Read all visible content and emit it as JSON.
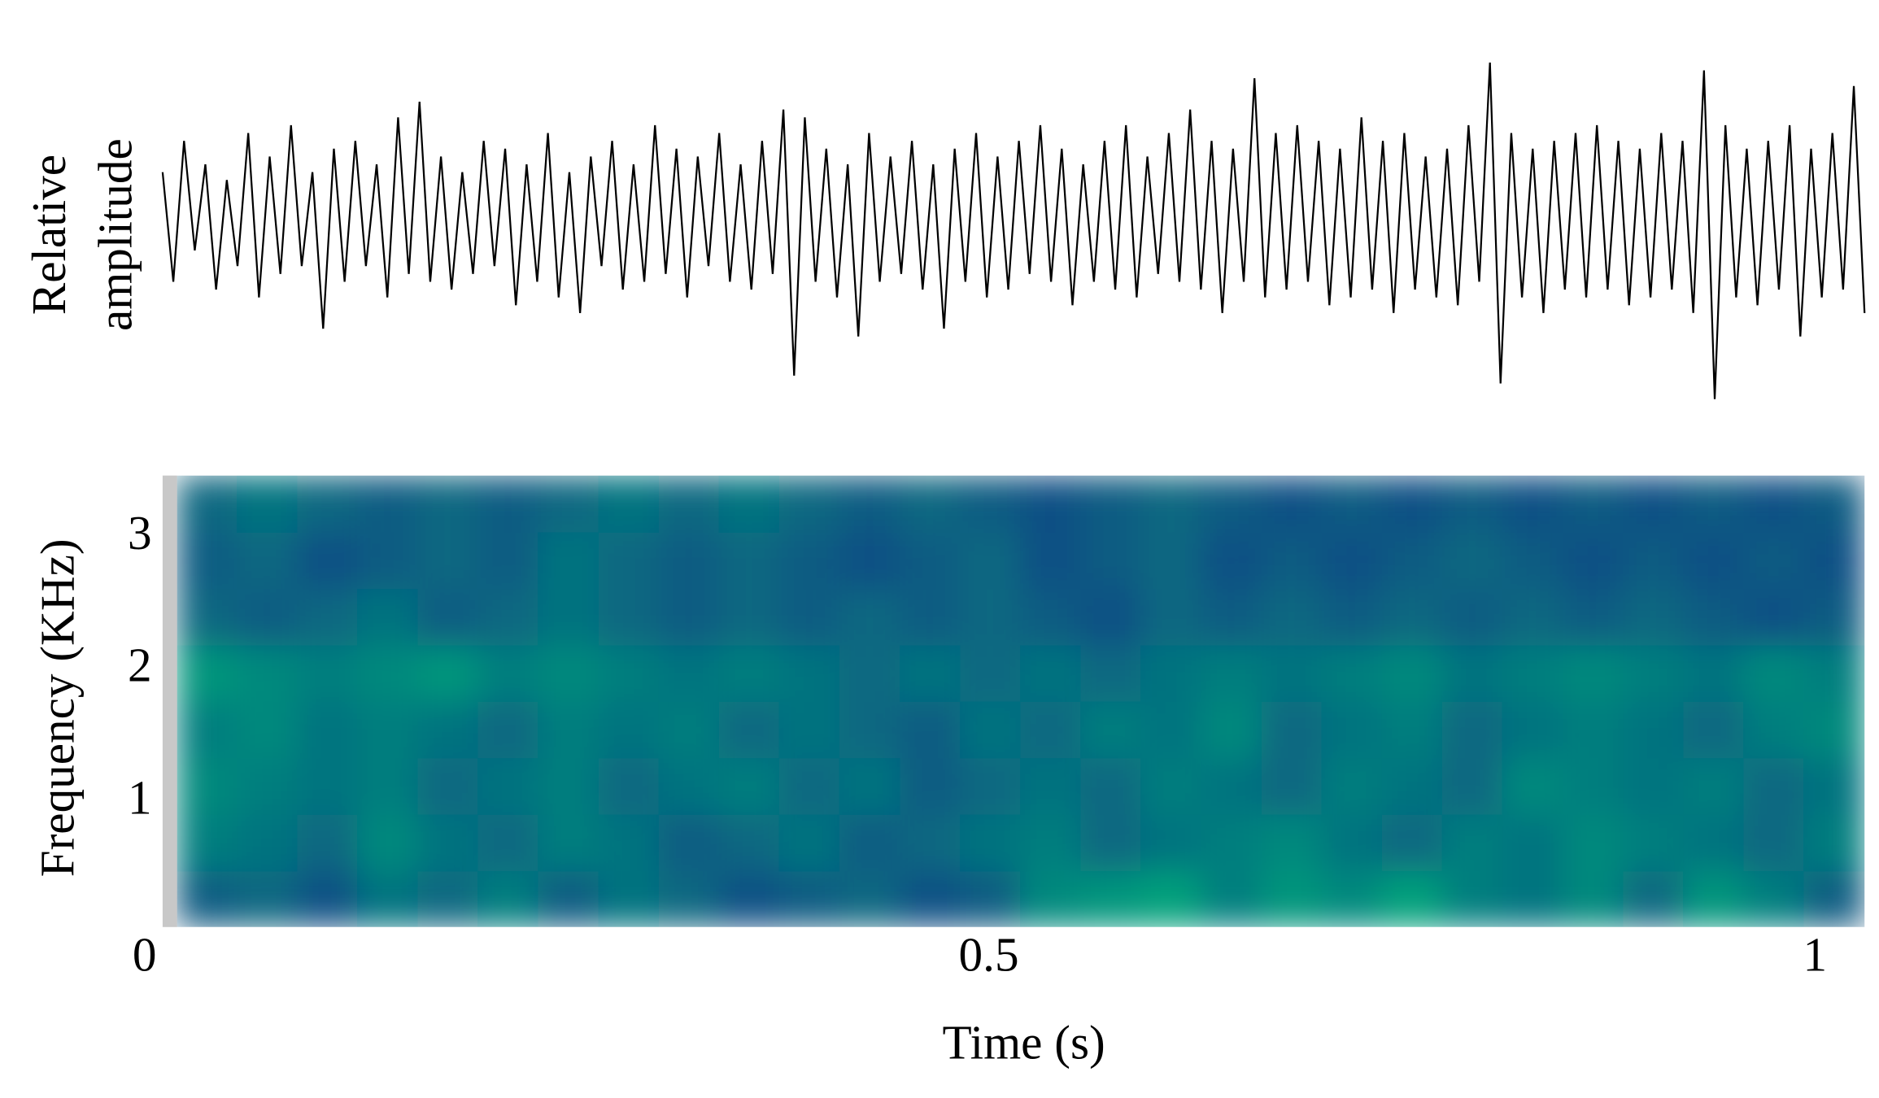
{
  "chart_data": [
    {
      "type": "line",
      "ylabel": [
        "Relative",
        "amplitude"
      ],
      "color": "#000000",
      "ylim": [
        -1.2,
        1.0
      ],
      "xlim": [
        0,
        1.03
      ],
      "values": [
        0.3,
        -0.4,
        0.5,
        -0.2,
        0.35,
        -0.45,
        0.25,
        -0.3,
        0.55,
        -0.5,
        0.4,
        -0.35,
        0.6,
        -0.3,
        0.3,
        -0.7,
        0.45,
        -0.4,
        0.5,
        -0.3,
        0.35,
        -0.5,
        0.65,
        -0.35,
        0.75,
        -0.4,
        0.4,
        -0.45,
        0.3,
        -0.35,
        0.5,
        -0.3,
        0.45,
        -0.55,
        0.35,
        -0.4,
        0.55,
        -0.5,
        0.3,
        -0.6,
        0.4,
        -0.3,
        0.5,
        -0.45,
        0.35,
        -0.4,
        0.6,
        -0.35,
        0.45,
        -0.5,
        0.4,
        -0.3,
        0.55,
        -0.4,
        0.35,
        -0.45,
        0.5,
        -0.35,
        0.7,
        -1.0,
        0.65,
        -0.4,
        0.45,
        -0.5,
        0.35,
        -0.75,
        0.55,
        -0.4,
        0.4,
        -0.35,
        0.5,
        -0.45,
        0.35,
        -0.7,
        0.45,
        -0.4,
        0.55,
        -0.5,
        0.4,
        -0.45,
        0.5,
        -0.35,
        0.6,
        -0.4,
        0.45,
        -0.55,
        0.35,
        -0.4,
        0.5,
        -0.45,
        0.6,
        -0.5,
        0.4,
        -0.35,
        0.55,
        -0.4,
        0.7,
        -0.45,
        0.5,
        -0.6,
        0.45,
        -0.4,
        0.9,
        -0.5,
        0.55,
        -0.45,
        0.6,
        -0.4,
        0.5,
        -0.55,
        0.45,
        -0.5,
        0.65,
        -0.45,
        0.5,
        -0.6,
        0.55,
        -0.45,
        0.4,
        -0.5,
        0.45,
        -0.55,
        0.6,
        -0.4,
        1.0,
        -1.05,
        0.55,
        -0.5,
        0.45,
        -0.6,
        0.5,
        -0.45,
        0.55,
        -0.5,
        0.6,
        -0.45,
        0.5,
        -0.55,
        0.45,
        -0.5,
        0.55,
        -0.45,
        0.5,
        -0.6,
        0.95,
        -1.15,
        0.6,
        -0.5,
        0.45,
        -0.55,
        0.5,
        -0.45,
        0.6,
        -0.75,
        0.45,
        -0.5,
        0.55,
        -0.45,
        0.85,
        -0.6
      ]
    },
    {
      "type": "heatmap",
      "xlabel": "Time (s)",
      "ylabel": "Frequency (KHz)",
      "xlim": [
        0,
        1.03
      ],
      "xticks": [
        0,
        0.5,
        1
      ],
      "ylim": [
        0.06,
        3.47
      ],
      "yticks": [
        1,
        2,
        3
      ],
      "colormap": [
        "#0b0c8c",
        "#00f070"
      ],
      "z": [
        [
          0.35,
          0.4,
          0.3,
          0.45,
          0.4,
          0.5,
          0.35,
          0.45,
          0.4,
          0.3,
          0.35,
          0.4,
          0.3,
          0.35,
          0.55,
          0.6,
          0.65,
          0.5,
          0.6,
          0.55,
          0.65,
          0.5,
          0.45,
          0.55,
          0.4,
          0.6,
          0.5,
          0.35
        ],
        [
          0.5,
          0.45,
          0.4,
          0.55,
          0.45,
          0.4,
          0.5,
          0.45,
          0.35,
          0.4,
          0.45,
          0.35,
          0.4,
          0.45,
          0.5,
          0.4,
          0.45,
          0.5,
          0.55,
          0.45,
          0.4,
          0.5,
          0.45,
          0.55,
          0.5,
          0.45,
          0.4,
          0.5
        ],
        [
          0.55,
          0.5,
          0.45,
          0.5,
          0.4,
          0.45,
          0.5,
          0.4,
          0.45,
          0.5,
          0.4,
          0.45,
          0.35,
          0.4,
          0.45,
          0.4,
          0.5,
          0.45,
          0.4,
          0.5,
          0.45,
          0.4,
          0.55,
          0.5,
          0.45,
          0.5,
          0.4,
          0.45
        ],
        [
          0.5,
          0.55,
          0.45,
          0.5,
          0.45,
          0.4,
          0.5,
          0.45,
          0.5,
          0.4,
          0.45,
          0.4,
          0.35,
          0.45,
          0.4,
          0.5,
          0.45,
          0.55,
          0.4,
          0.45,
          0.5,
          0.4,
          0.45,
          0.5,
          0.45,
          0.4,
          0.5,
          0.55
        ],
        [
          0.6,
          0.55,
          0.5,
          0.55,
          0.6,
          0.5,
          0.55,
          0.5,
          0.45,
          0.5,
          0.45,
          0.4,
          0.45,
          0.4,
          0.45,
          0.4,
          0.45,
          0.5,
          0.45,
          0.5,
          0.55,
          0.45,
          0.5,
          0.55,
          0.5,
          0.45,
          0.55,
          0.5
        ],
        [
          0.4,
          0.35,
          0.4,
          0.45,
          0.35,
          0.4,
          0.45,
          0.4,
          0.35,
          0.4,
          0.35,
          0.4,
          0.35,
          0.4,
          0.35,
          0.3,
          0.4,
          0.35,
          0.4,
          0.35,
          0.4,
          0.35,
          0.4,
          0.35,
          0.4,
          0.35,
          0.3,
          0.35
        ],
        [
          0.35,
          0.4,
          0.3,
          0.35,
          0.4,
          0.35,
          0.45,
          0.4,
          0.35,
          0.4,
          0.35,
          0.3,
          0.35,
          0.4,
          0.3,
          0.35,
          0.4,
          0.3,
          0.35,
          0.3,
          0.35,
          0.4,
          0.35,
          0.3,
          0.35,
          0.3,
          0.35,
          0.3
        ],
        [
          0.4,
          0.45,
          0.4,
          0.35,
          0.4,
          0.35,
          0.4,
          0.45,
          0.4,
          0.45,
          0.4,
          0.35,
          0.4,
          0.35,
          0.3,
          0.35,
          0.4,
          0.35,
          0.3,
          0.35,
          0.3,
          0.35,
          0.3,
          0.35,
          0.3,
          0.35,
          0.3,
          0.35
        ]
      ]
    }
  ]
}
